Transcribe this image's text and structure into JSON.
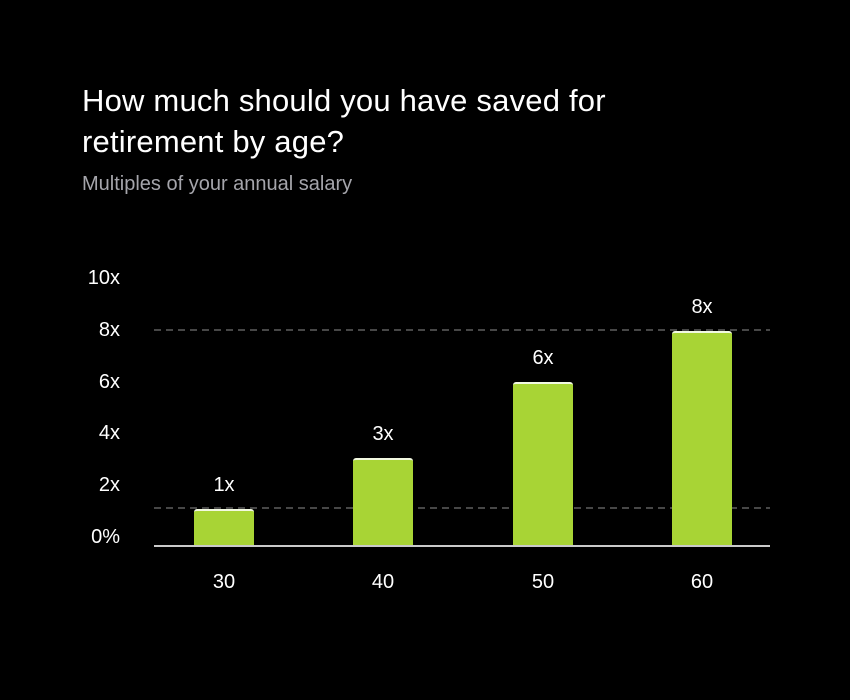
{
  "chart_data": {
    "type": "bar",
    "title": "How much should you have saved for retirement by age?",
    "subtitle": "Multiples of your annual salary",
    "categories": [
      "30",
      "40",
      "50",
      "60"
    ],
    "values": [
      1,
      3,
      6,
      8
    ],
    "bar_labels": [
      "1x",
      "3x",
      "6x",
      "8x"
    ],
    "xlabel": "",
    "ylabel": "",
    "y_ticks": [
      "10x",
      "8x",
      "6x",
      "4x",
      "2x",
      "0%"
    ],
    "ylim": [
      0,
      10
    ],
    "reference_lines": [
      8,
      1
    ],
    "grid": "dashed-reference-lines-only",
    "legend": "none",
    "colors": {
      "background": "#000000",
      "bar": "#a8d435",
      "bar_top_highlight": "rgba(255,255,255,0.85)",
      "axis_line": "#cacaca",
      "reference_line": "#474747",
      "title_text": "#ffffff",
      "subtitle_text": "#a5a5ab",
      "tick_text": "#ffffff"
    }
  }
}
